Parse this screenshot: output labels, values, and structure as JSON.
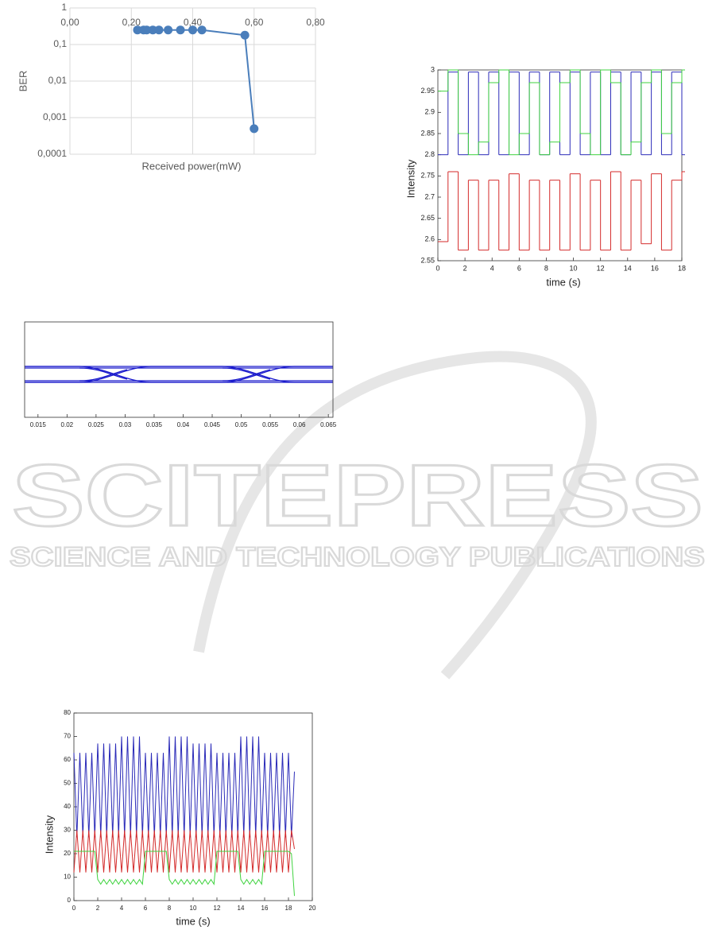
{
  "watermark": {
    "title": "SCITEPRESS",
    "subtitle": "SCIENCE AND TECHNOLOGY PUBLICATIONS"
  },
  "chart_data": [
    {
      "type": "scatter",
      "x_label": "Received power(mW)",
      "y_label": "BER",
      "color": "#4a7ebb",
      "ylog": true,
      "grid": true,
      "x": [
        0.22,
        0.24,
        0.25,
        0.27,
        0.29,
        0.32,
        0.36,
        0.4,
        0.43,
        0.57,
        0.6
      ],
      "values": [
        0.25,
        0.25,
        0.25,
        0.25,
        0.25,
        0.25,
        0.25,
        0.25,
        0.25,
        0.18,
        0.0005
      ],
      "xlim": [
        0,
        0.8
      ],
      "xticks": [
        {
          "value": 0,
          "label": "0,00"
        },
        {
          "value": 0.2,
          "label": "0,20"
        },
        {
          "value": 0.4,
          "label": "0,40"
        },
        {
          "value": 0.6,
          "label": "0,60"
        },
        {
          "value": 0.8,
          "label": "0,80"
        }
      ],
      "ylim": [
        0.0001,
        1
      ],
      "yticks": [
        1,
        {
          "value": 0.1,
          "label": "0,1"
        },
        {
          "value": 0.01,
          "label": "0,01"
        },
        {
          "value": 0.001,
          "label": "0,001"
        },
        {
          "value": 0.0001,
          "label": "0,0001"
        }
      ]
    },
    {
      "type": "step",
      "x_label": "time (s)",
      "y_label": "Intensity",
      "x": [
        0,
        0.75,
        1.5,
        2.25,
        3,
        3.75,
        4.5,
        5.25,
        6,
        6.75,
        7.5,
        8.25,
        9,
        9.75,
        10.5,
        11.25,
        12,
        12.75,
        13.5,
        14.25,
        15,
        15.75,
        16.5,
        17.25,
        18
      ],
      "series": [
        {
          "color": "#2a2ab8",
          "values": [
            2.8,
            2.995,
            2.8,
            2.995,
            2.8,
            2.995,
            2.8,
            2.995,
            2.8,
            2.995,
            2.8,
            2.995,
            2.8,
            2.995,
            2.8,
            2.995,
            2.8,
            2.995,
            2.8,
            2.995,
            2.8,
            2.995,
            2.8,
            2.995,
            2.8
          ]
        },
        {
          "color": "#d42a2a",
          "values": [
            2.595,
            2.76,
            2.575,
            2.74,
            2.575,
            2.74,
            2.575,
            2.755,
            2.575,
            2.74,
            2.575,
            2.74,
            2.575,
            2.755,
            2.575,
            2.74,
            2.575,
            2.76,
            2.575,
            2.74,
            2.59,
            2.755,
            2.575,
            2.74,
            2.76
          ]
        },
        {
          "color": "#3fd33f",
          "values": [
            2.95,
            3,
            2.85,
            2.8,
            2.83,
            2.97,
            3,
            2.8,
            2.85,
            2.97,
            2.8,
            2.83,
            2.97,
            3,
            2.85,
            2.8,
            3,
            2.97,
            2.8,
            2.83,
            2.97,
            3,
            2.85,
            2.97,
            3
          ]
        }
      ],
      "xlim": [
        0,
        18
      ],
      "xticks": [
        0,
        2,
        4,
        6,
        8,
        10,
        12,
        14,
        16,
        18
      ],
      "ylim": [
        2.55,
        3
      ],
      "yticks": [
        2.55,
        2.6,
        2.65,
        2.7,
        2.75,
        2.8,
        2.85,
        2.9,
        2.95,
        3
      ]
    },
    {
      "type": "eye",
      "xlim": [
        0.0127,
        0.0658
      ],
      "xticks": [
        0.015,
        0.02,
        0.025,
        0.03,
        0.035,
        0.04,
        0.045,
        0.05,
        0.055,
        0.06,
        0.065
      ]
    },
    {
      "type": "line",
      "x_label": "time (s)",
      "y_label": "Intensity",
      "x": [
        0,
        0.25,
        0.5,
        0.75,
        1,
        1.25,
        1.5,
        1.75,
        2,
        2.25,
        2.5,
        2.75,
        3,
        3.25,
        3.5,
        3.75,
        4,
        4.25,
        4.5,
        4.75,
        5,
        5.25,
        5.5,
        5.75,
        6,
        6.25,
        6.5,
        6.75,
        7,
        7.25,
        7.5,
        7.75,
        8,
        8.25,
        8.5,
        8.75,
        9,
        9.25,
        9.5,
        9.75,
        10,
        10.25,
        10.5,
        10.75,
        11,
        11.25,
        11.5,
        11.75,
        12,
        12.25,
        12.5,
        12.75,
        13,
        13.25,
        13.5,
        13.75,
        14,
        14.25,
        14.5,
        14.75,
        15,
        15.25,
        15.5,
        15.75,
        16,
        16.25,
        16.5,
        16.75,
        17,
        17.25,
        17.5,
        17.75,
        18,
        18.25,
        18.5
      ],
      "series": [
        {
          "color": "#2a2ab8",
          "values": [
            63,
            27,
            63,
            27,
            63,
            27,
            63,
            27,
            67,
            27,
            67,
            27,
            67,
            27,
            67,
            27,
            70,
            27,
            70,
            27,
            70,
            27,
            70,
            27,
            63,
            27,
            63,
            27,
            63,
            27,
            63,
            27,
            70,
            27,
            70,
            27,
            70,
            27,
            70,
            27,
            67,
            27,
            67,
            27,
            67,
            27,
            67,
            27,
            63,
            27,
            63,
            27,
            63,
            27,
            63,
            27,
            70,
            27,
            70,
            27,
            70,
            27,
            70,
            27,
            63,
            27,
            63,
            27,
            63,
            27,
            63,
            27,
            63,
            27,
            55
          ]
        },
        {
          "color": "#d42a2a",
          "values": [
            12,
            30,
            12,
            30,
            12,
            30,
            12,
            30,
            12,
            30,
            12,
            30,
            12,
            30,
            12,
            30,
            12,
            30,
            12,
            30,
            12,
            30,
            12,
            30,
            12,
            30,
            12,
            30,
            12,
            30,
            12,
            30,
            12,
            30,
            12,
            30,
            12,
            30,
            12,
            30,
            12,
            30,
            12,
            30,
            12,
            30,
            12,
            30,
            12,
            30,
            12,
            30,
            12,
            30,
            12,
            30,
            12,
            30,
            12,
            30,
            12,
            30,
            12,
            30,
            12,
            30,
            12,
            30,
            12,
            30,
            12,
            30,
            12,
            30,
            22
          ]
        },
        {
          "color": "#3fd33f",
          "values": [
            21,
            21,
            21,
            21,
            21,
            21,
            21,
            21,
            9,
            7,
            9,
            7,
            9,
            7,
            9,
            7,
            9,
            7,
            9,
            7,
            9,
            7,
            9,
            7,
            21,
            21,
            21,
            21,
            21,
            21,
            21,
            21,
            9,
            7,
            9,
            7,
            9,
            7,
            9,
            7,
            9,
            7,
            9,
            7,
            9,
            7,
            9,
            7,
            21,
            21,
            21,
            21,
            21,
            21,
            21,
            21,
            9,
            7,
            9,
            7,
            9,
            7,
            9,
            7,
            21,
            21,
            21,
            21,
            21,
            21,
            21,
            21,
            21,
            20,
            2
          ]
        }
      ],
      "xlim": [
        0,
        20
      ],
      "xticks": [
        0,
        2,
        4,
        6,
        8,
        10,
        12,
        14,
        16,
        18,
        20
      ],
      "ylim": [
        0,
        80
      ],
      "yticks": [
        0,
        10,
        20,
        30,
        40,
        50,
        60,
        70,
        80
      ]
    }
  ]
}
